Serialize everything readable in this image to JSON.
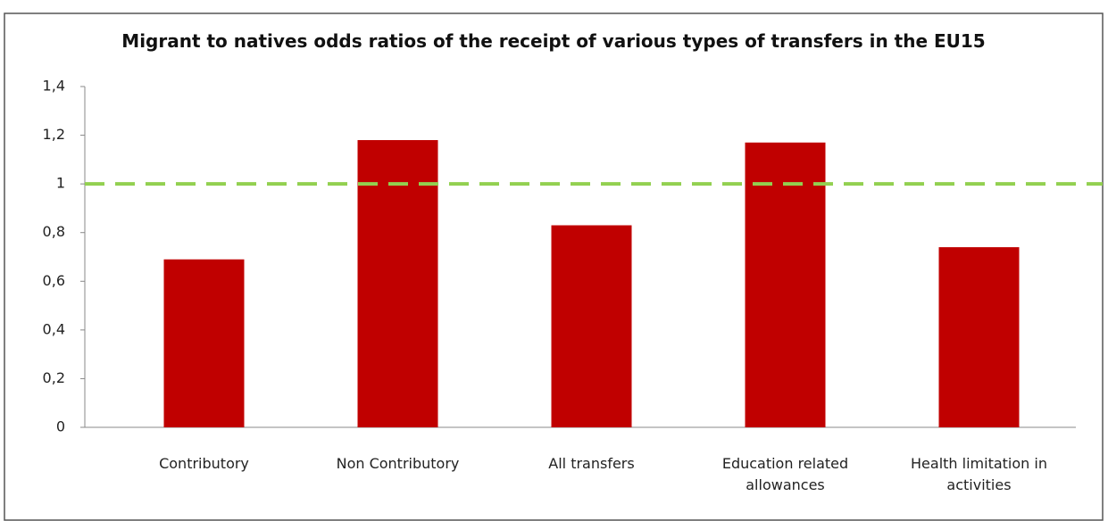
{
  "chart_data": {
    "type": "bar",
    "title": "Migrant to natives odds ratios of the receipt of various types of transfers in the EU15",
    "categories": [
      "Contributory",
      "Non Contributory",
      "All transfers",
      "Education related allowances",
      "Health limitation in activities"
    ],
    "values": [
      0.69,
      1.18,
      0.83,
      1.17,
      0.74
    ],
    "color": "#c00000",
    "ylim": [
      0,
      1.4
    ],
    "yticks": [
      0,
      {
        "value": 0.2,
        "label": "0,2"
      },
      {
        "value": 0.4,
        "label": "0,4"
      },
      {
        "value": 0.6,
        "label": "0,6"
      },
      {
        "value": 0.8,
        "label": "0,8"
      },
      1,
      {
        "value": 1.2,
        "label": "1,2"
      },
      {
        "value": 1.4,
        "label": "1,4"
      }
    ],
    "reference_line": {
      "value": 1,
      "color": "#92d050"
    },
    "grid": false
  }
}
